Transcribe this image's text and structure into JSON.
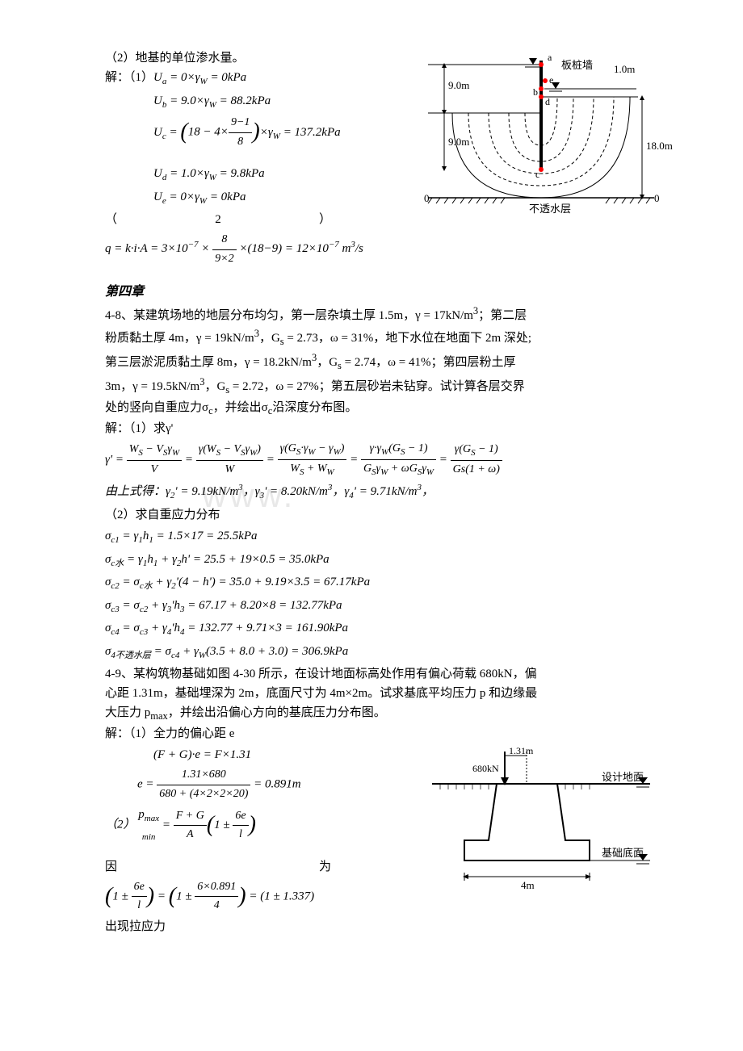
{
  "part2": {
    "title": "（2）地基的单位渗水量。",
    "sol_label": "解：（1）",
    "ua": "U<sub>a</sub> = 0×γ<sub>W</sub> = 0kPa",
    "ub": "U<sub>b</sub> = 9.0×γ<sub>W</sub> = 88.2kPa",
    "uc_pre": "U<sub>c</sub> = ",
    "uc_frac_num": "9−1",
    "uc_frac_den": "8",
    "uc_post": "×γ<sub>W</sub> = 137.2kPa",
    "uc_inner_pre": "18 − 4×",
    "ud": "U<sub>d</sub> = 1.0×γ<sub>W</sub> = 9.8kPa",
    "ue": "U<sub>e</sub> = 0×γ<sub>W</sub> = 0kPa",
    "p2_label_l": "（",
    "p2_label_m": "2",
    "p2_label_r": "）",
    "q_pre": "q = k·i·A = 3×10<sup>−7</sup> ×",
    "q_num": "8",
    "q_den": "9×2",
    "q_post": "×(18−9) = 12×10<sup>−7</sup> m<sup>3</sup>/s"
  },
  "fig1": {
    "label_wall": "板桩墙",
    "label_1m": "1.0m",
    "label_9a": "9.0m",
    "label_9b": "9.0m",
    "label_18": "18.0m",
    "label_impervious": "不透水层",
    "zero_l": "0",
    "zero_r": "0",
    "a": "a",
    "b": "b",
    "c": "c",
    "d": "d",
    "e": "e"
  },
  "ch4": {
    "title": "第四章",
    "p48_1": "4-8、某建筑场地的地层分布均匀，第一层杂填土厚 1.5m，γ = 17kN/m<sup>3</sup>；第二层",
    "p48_2": "粉质黏土厚 4m，γ = 19kN/m<sup>3</sup>，G<sub>s</sub> = 2.73，ω = 31%，地下水位在地面下 2m 深处;",
    "p48_3": "第三层淤泥质黏土厚 8m，γ = 18.2kN/m<sup>3</sup>，G<sub>s</sub> = 2.74，ω = 41%；第四层粉土厚",
    "p48_4": "3m，γ = 19.5kN/m<sup>3</sup>，G<sub>s</sub> = 2.72，ω = 27%；第五层砂岩未钻穿。试计算各层交界",
    "p48_5": "处的竖向自重应力σ<sub>c</sub>，并绘出σ<sub>c</sub>沿深度分布图。",
    "sol1": "解：（1）求γ'",
    "gamma_full": "γ' = <span class='frac'><span class='num'>W<sub>S</sub> − V<sub>S</sub>γ<sub>W</sub></span><span class='den'>V</span></span> = <span class='frac'><span class='num'>γ(W<sub>S</sub> − V<sub>S</sub>γ<sub>W</sub>)</span><span class='den'>W</span></span> = <span class='frac'><span class='num'>γ(G<sub>S</sub>·γ<sub>W</sub> − γ<sub>W</sub>)</span><span class='den'>W<sub>S</sub> + W<sub>W</sub></span></span> = <span class='frac'><span class='num'>γ·γ<sub>W</sub>(G<sub>S</sub> − 1)</span><span class='den'>G<sub>S</sub>γ<sub>W</sub> + ωG<sub>S</sub>γ<sub>W</sub></span></span> = <span class='frac'><span class='num'>γ(G<sub>S</sub> − 1)</span><span class='den'>Gs(1 + ω)</span></span>",
    "gamma_res": "由上式得：γ<sub>2</sub>' = 9.19kN/m<sup>3</sup>，γ<sub>3</sub>' = 8.20kN/m<sup>3</sup>，γ<sub>4</sub>' = 9.71kN/m<sup>3</sup>，",
    "sol2": "（2）求自重应力分布",
    "sc1": "σ<sub>c1</sub> = γ<sub>1</sub>h<sub>1</sub> = 1.5×17 = 25.5kPa",
    "scw": "σ<sub>c水</sub> = γ<sub>1</sub>h<sub>1</sub> + γ<sub>2</sub>h' = 25.5 + 19×0.5 = 35.0kPa",
    "sc2": "σ<sub>c2</sub> = σ<sub>c水</sub> + γ<sub>2</sub>'(4 − h') = 35.0 + 9.19×3.5 = 67.17kPa",
    "sc3": "σ<sub>c3</sub> = σ<sub>c2</sub> + γ<sub>3</sub>'h<sub>3</sub> = 67.17 + 8.20×8 = 132.77kPa",
    "sc4": "σ<sub>c4</sub> = σ<sub>c3</sub> + γ<sub>4</sub>'h<sub>4</sub> = 132.77 + 9.71×3 = 161.90kPa",
    "sc_imp": "σ<sub>4不透水层</sub> = σ<sub>c4</sub> + γ<sub>W</sub>(3.5 + 8.0 + 3.0) = 306.9kPa",
    "p49_1": "4-9、某构筑物基础如图 4-30 所示，在设计地面标高处作用有偏心荷载 680kN，偏",
    "p49_2": "心距 1.31m，基础埋深为 2m，底面尺寸为 4m×2m。试求基底平均压力 p 和边缘最",
    "p49_3": "大压力 p<sub>max</sub>，并绘出沿偏心方向的基底压力分布图。",
    "sol49_1": "解：（1）全力的偏心距 e",
    "fg_e": "(F + G)·e = F×1.31",
    "e_pre": "e = ",
    "e_num": "1.31×680",
    "e_den": "680 + (4×2×2×20)",
    "e_post": " = 0.891m",
    "sol49_2_label": "（2）",
    "pmax_pre": "p<sub>max</sub><br><span style='font-size:11px'>min</span>",
    "pmax_eq": " = <span class='frac'><span class='num'>F + G</span><span class='den'>A</span></span><span class='paren-big'>(</span>1 ± <span class='frac'><span class='num'>6e</span><span class='den'>l</span></span><span class='paren-big'>)</span>",
    "because_l": "因",
    "because_r": "为",
    "final_eq": "<span class='paren-big'>(</span>1 ± <span class='frac'><span class='num'>6e</span><span class='den'>l</span></span><span class='paren-big'>)</span> = <span class='paren-big'>(</span>1 ± <span class='frac'><span class='num'>6×0.891</span><span class='den'>4</span></span><span class='paren-big'>)</span> = (1 ± 1.337)",
    "tension": "出现拉应力"
  },
  "fig2": {
    "label_131": "1.31m",
    "label_680": "680kN",
    "label_design": "设计地面",
    "label_base": "基础底面",
    "label_4m": "4m"
  },
  "watermark": "www.",
  "colors": {
    "text": "#000000",
    "bg": "#ffffff",
    "red": "#ff0000",
    "wm": "#e8e8e8"
  }
}
